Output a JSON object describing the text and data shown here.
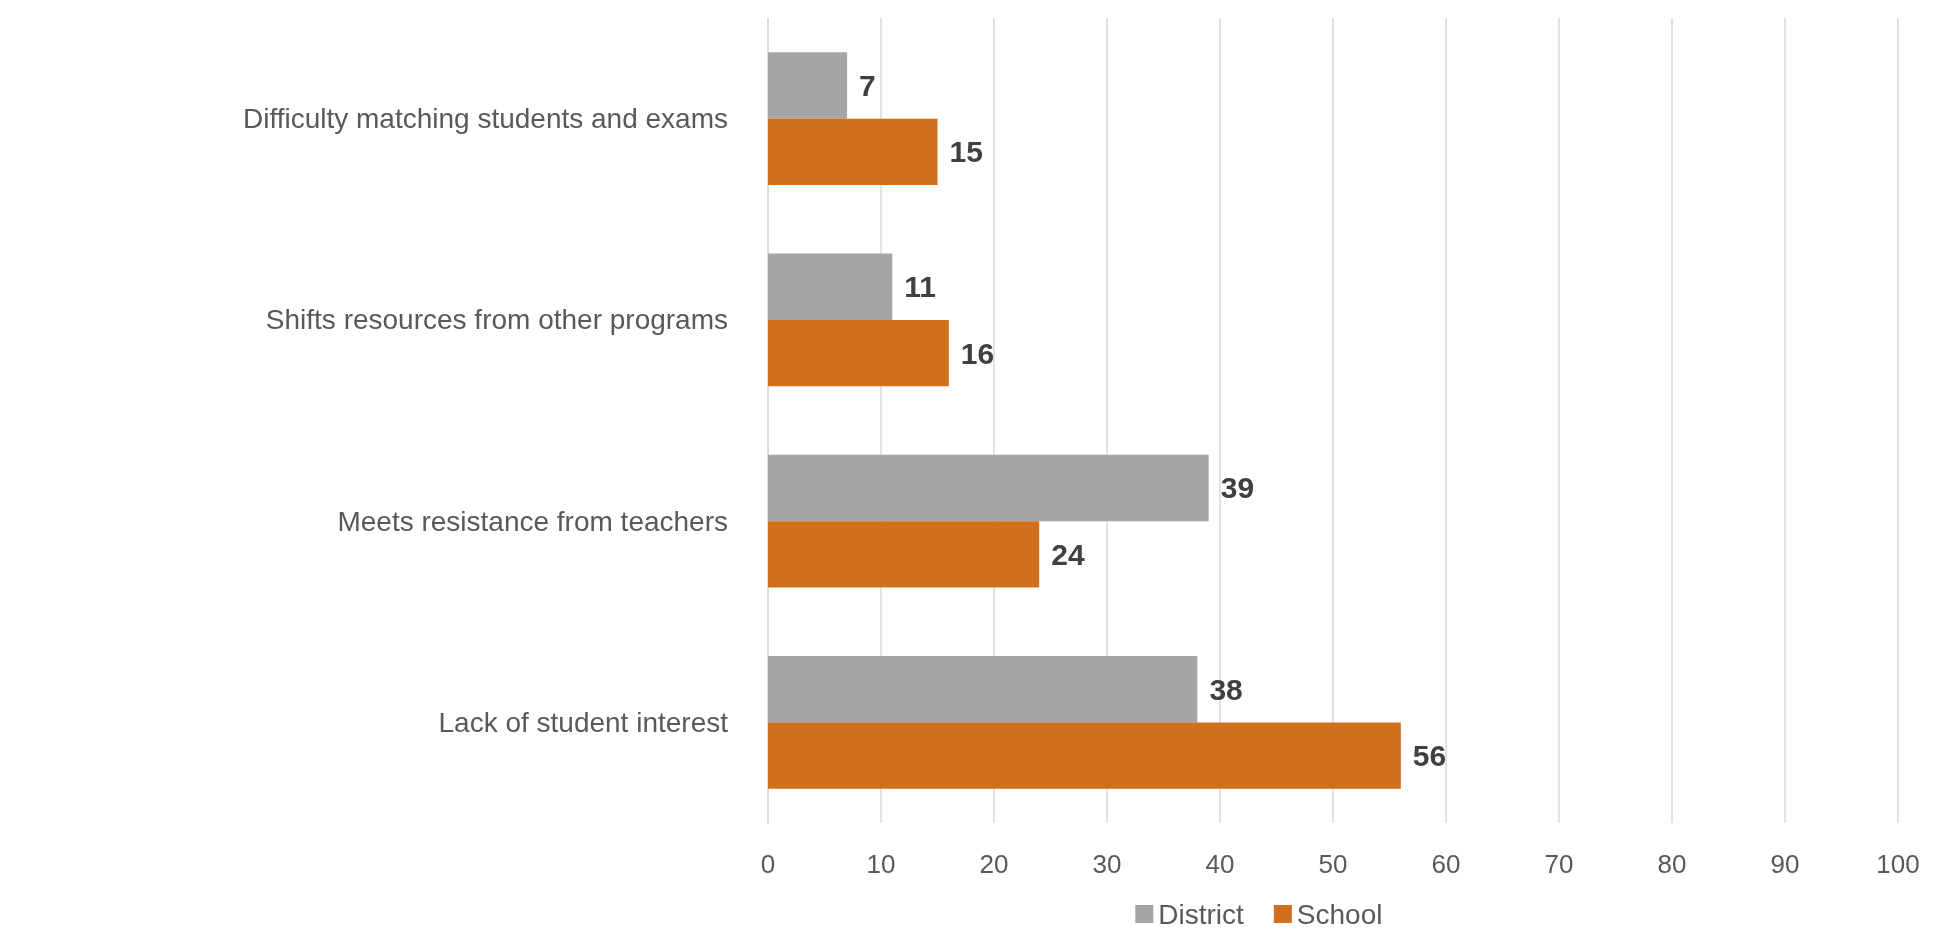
{
  "chart_data": {
    "type": "bar",
    "orientation": "horizontal",
    "categories": [
      "Difficulty matching students and exams",
      "Shifts resources from other programs",
      "Meets resistance from teachers",
      "Lack of student interest"
    ],
    "series": [
      {
        "name": "District",
        "color": "#a5a5a5",
        "values": [
          7,
          11,
          39,
          38
        ]
      },
      {
        "name": "School",
        "color": "#d06f1c",
        "values": [
          15,
          16,
          24,
          56
        ]
      }
    ],
    "xlim": [
      0,
      100
    ],
    "xticks": [
      0,
      10,
      20,
      30,
      40,
      50,
      60,
      70,
      80,
      90,
      100
    ],
    "grid": "x",
    "legend": "bottom",
    "data_labels": true
  }
}
